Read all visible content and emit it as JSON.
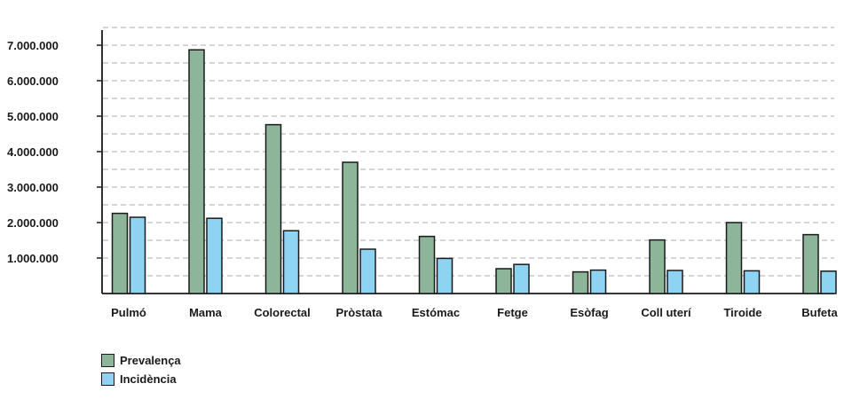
{
  "chart_data": {
    "type": "bar",
    "categories": [
      "Pulmó",
      "Mama",
      "Colorectal",
      "Pròstata",
      "Estómac",
      "Fetge",
      "Esòfag",
      "Coll uterí",
      "Tiroide",
      "Bufeta"
    ],
    "series": [
      {
        "name": "Prevalença",
        "color": "#8db59a",
        "values": [
          2260000,
          6870000,
          4760000,
          3700000,
          1610000,
          700000,
          610000,
          1510000,
          2000000,
          1660000
        ]
      },
      {
        "name": "Incidència",
        "color": "#8fd3f2",
        "values": [
          2150000,
          2120000,
          1770000,
          1250000,
          990000,
          820000,
          660000,
          650000,
          640000,
          630000
        ]
      }
    ],
    "yticks": [
      1000000,
      2000000,
      3000000,
      4000000,
      5000000,
      6000000,
      7000000
    ],
    "ytick_labels": [
      "1.000.000",
      "2.000.000",
      "3.000.000",
      "4.000.000",
      "5.000.000",
      "6.000.000",
      "7.000.000"
    ],
    "ylim": [
      0,
      7500000
    ],
    "grid": true,
    "legend_position": "bottom-left"
  }
}
